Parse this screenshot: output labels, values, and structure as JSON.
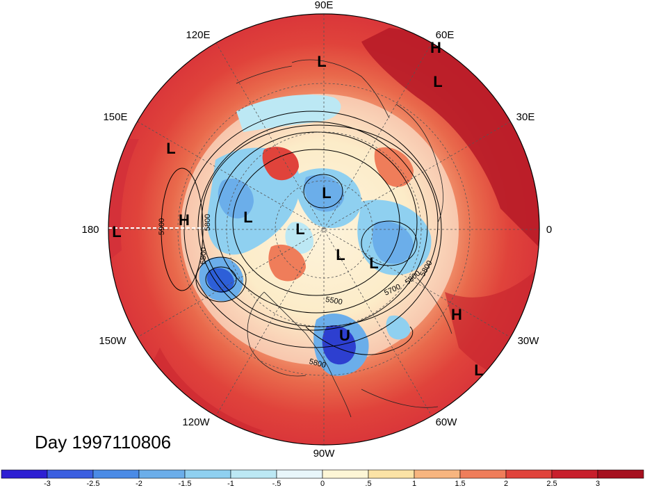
{
  "day_label": "Day 1997110806",
  "longitude_labels": [
    "90E",
    "60E",
    "30E",
    "0",
    "30W",
    "60W",
    "90W",
    "120W",
    "150W",
    "180",
    "150E",
    "120E"
  ],
  "pressure_centers": [
    {
      "type": "L",
      "region": "central-asia-top"
    },
    {
      "type": "H",
      "region": "arabian"
    },
    {
      "type": "L",
      "region": "arabian-south"
    },
    {
      "type": "L",
      "region": "west-pacific"
    },
    {
      "type": "L",
      "region": "date-line"
    },
    {
      "type": "H",
      "region": "central-pacific"
    },
    {
      "type": "L",
      "region": "bering"
    },
    {
      "type": "L",
      "region": "arctic-siberia"
    },
    {
      "type": "L",
      "region": "arctic-pole"
    },
    {
      "type": "L",
      "region": "greenland"
    },
    {
      "type": "L",
      "region": "north-atlantic"
    },
    {
      "type": "U",
      "region": "eastern-us"
    },
    {
      "type": "H",
      "region": "central-atlantic"
    },
    {
      "type": "L",
      "region": "east-atlantic"
    }
  ],
  "contour_labels": [
    "5900",
    "5800",
    "5800",
    "5800",
    "5800",
    "5700",
    "5500",
    "5800"
  ],
  "colorbar": {
    "tick_labels": [
      "-3",
      "-2.5",
      "-2",
      "-1.5",
      "-1",
      "-.5",
      "0",
      ".5",
      "1",
      "1.5",
      "2",
      "2.5",
      "3"
    ],
    "colors": [
      "#2d1fd3",
      "#3b5fe0",
      "#4a8be6",
      "#6baeea",
      "#8fd0f0",
      "#bce8f4",
      "#e8f6fa",
      "#fdf6d6",
      "#fbe3a6",
      "#f7b57f",
      "#ef7d5a",
      "#e0433b",
      "#c81f2c",
      "#a6101f"
    ]
  },
  "colors": {
    "warm_bg": "#e55040",
    "deep_red": "#b81c28",
    "blue_dark": "#2d3fd0"
  }
}
